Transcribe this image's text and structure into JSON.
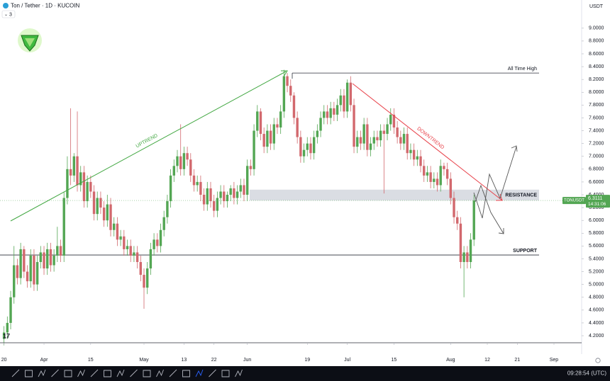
{
  "chart_data": {
    "type": "candlestick",
    "title": "Ton / Tether · 1D · KUCOIN",
    "indicator_badge": "3",
    "currency": "USDT",
    "up_color": "#53a653",
    "down_color": "#d2686d",
    "x": [
      -12,
      -11,
      -10,
      -9,
      -8,
      -7,
      -6,
      -5,
      -4,
      -3,
      -2,
      -1,
      0,
      1,
      2,
      3,
      4,
      5,
      6,
      7,
      8,
      9,
      10,
      11,
      12,
      13,
      14,
      15,
      16,
      17,
      18,
      19,
      20,
      21,
      22,
      23,
      24,
      25,
      26,
      27,
      28,
      29,
      30,
      31,
      32,
      33,
      34,
      35,
      36,
      37,
      38,
      39,
      40,
      41,
      42,
      43,
      44,
      45,
      46,
      47,
      48,
      49,
      50,
      51,
      52,
      53,
      54,
      55,
      56,
      57,
      58,
      59,
      60,
      61,
      62,
      63,
      64,
      65,
      66,
      67,
      68,
      69,
      70,
      71,
      72,
      73,
      74,
      75,
      76,
      77,
      78,
      79,
      80,
      81,
      82,
      83,
      84,
      85,
      86,
      87,
      88,
      89,
      90,
      91,
      92,
      93,
      94,
      95,
      96,
      97,
      98,
      99,
      100,
      101,
      102,
      103,
      104,
      105,
      106,
      107,
      108,
      109,
      110,
      111,
      112,
      113,
      114,
      115,
      116,
      117,
      118,
      119,
      120,
      121,
      122,
      123,
      124,
      125,
      126,
      127,
      128,
      129
    ],
    "open": [
      4.15,
      4.25,
      4.4,
      4.8,
      5.3,
      5.1,
      5.55,
      5.2,
      5.05,
      5.45,
      5.0,
      5.35,
      5.5,
      5.25,
      5.55,
      5.3,
      5.45,
      5.6,
      5.45,
      6.35,
      6.8,
      6.7,
      7.0,
      6.55,
      6.75,
      6.3,
      6.6,
      6.45,
      6.1,
      6.35,
      6.2,
      6.0,
      6.25,
      5.85,
      5.95,
      5.7,
      5.75,
      5.55,
      5.6,
      5.45,
      5.5,
      5.35,
      5.15,
      4.95,
      5.25,
      5.55,
      5.7,
      5.6,
      5.85,
      6.05,
      6.3,
      6.7,
      6.85,
      7.0,
      6.8,
      7.05,
      6.95,
      6.7,
      6.55,
      6.6,
      6.4,
      6.25,
      6.5,
      6.3,
      6.15,
      6.35,
      6.45,
      6.3,
      6.4,
      6.5,
      6.35,
      6.45,
      6.55,
      6.4,
      6.85,
      6.8,
      7.4,
      7.7,
      7.35,
      7.15,
      7.4,
      7.2,
      7.5,
      7.45,
      7.7,
      8.25,
      8.1,
      7.95,
      7.6,
      7.3,
      7.0,
      7.1,
      7.2,
      7.05,
      7.3,
      7.4,
      7.6,
      7.7,
      7.6,
      7.75,
      7.65,
      7.8,
      7.95,
      7.7,
      8.15,
      7.8,
      7.15,
      7.3,
      7.2,
      7.5,
      7.1,
      7.2,
      7.3,
      7.25,
      7.4,
      7.35,
      7.5,
      7.65,
      7.45,
      7.3,
      7.2,
      7.35,
      7.05,
      7.1,
      6.95,
      7.0,
      6.85,
      6.7,
      6.75,
      6.6,
      6.65,
      6.55,
      6.85,
      6.8,
      6.65,
      6.35,
      6.05,
      5.95,
      5.35,
      5.5,
      5.35,
      5.7
    ],
    "high": [
      4.35,
      4.5,
      4.9,
      5.6,
      5.4,
      5.65,
      5.6,
      5.3,
      5.55,
      5.55,
      5.45,
      5.6,
      5.6,
      5.65,
      5.65,
      5.55,
      5.9,
      5.7,
      6.45,
      7.0,
      7.75,
      7.05,
      7.7,
      6.85,
      6.85,
      6.7,
      6.7,
      6.55,
      6.45,
      6.45,
      6.3,
      6.4,
      6.35,
      6.05,
      6.05,
      5.85,
      5.85,
      5.7,
      5.7,
      5.6,
      5.6,
      5.45,
      5.25,
      5.35,
      5.65,
      5.8,
      5.8,
      5.95,
      6.15,
      6.4,
      6.8,
      6.95,
      7.1,
      7.5,
      7.15,
      7.15,
      7.05,
      6.8,
      6.7,
      6.7,
      6.5,
      6.6,
      6.6,
      6.4,
      6.45,
      6.55,
      6.55,
      6.45,
      6.55,
      6.6,
      6.55,
      6.65,
      6.65,
      6.95,
      6.95,
      7.5,
      7.8,
      7.75,
      7.45,
      7.5,
      7.5,
      7.6,
      7.6,
      7.8,
      8.35,
      8.3,
      8.2,
      8.0,
      7.7,
      7.4,
      7.2,
      7.3,
      7.3,
      7.4,
      7.5,
      7.7,
      7.8,
      7.8,
      7.85,
      7.85,
      7.9,
      8.05,
      8.05,
      8.2,
      8.25,
      7.9,
      7.4,
      7.4,
      7.6,
      7.6,
      7.3,
      7.4,
      7.4,
      7.5,
      7.5,
      7.6,
      7.75,
      7.75,
      7.55,
      7.4,
      7.45,
      7.45,
      7.2,
      7.2,
      7.1,
      7.1,
      6.95,
      6.85,
      6.85,
      6.75,
      6.75,
      6.95,
      6.9,
      6.9,
      6.75,
      6.45,
      6.15,
      6.05,
      5.6,
      5.6,
      5.8,
      6.4
    ],
    "low": [
      4.05,
      4.15,
      4.3,
      4.7,
      5.0,
      5.0,
      5.1,
      4.95,
      4.95,
      4.9,
      4.9,
      5.25,
      5.15,
      5.15,
      5.2,
      5.2,
      5.35,
      5.35,
      5.35,
      6.25,
      6.55,
      6.6,
      6.45,
      6.45,
      6.2,
      6.2,
      6.35,
      6.0,
      6.0,
      6.1,
      5.9,
      5.9,
      5.75,
      5.75,
      5.6,
      5.6,
      5.45,
      5.45,
      5.35,
      5.35,
      5.25,
      5.05,
      4.62,
      4.85,
      5.15,
      5.45,
      5.5,
      5.5,
      5.75,
      5.95,
      6.2,
      6.6,
      6.75,
      6.7,
      6.7,
      6.85,
      6.6,
      6.45,
      6.45,
      6.3,
      6.15,
      6.15,
      6.2,
      6.05,
      6.05,
      6.25,
      6.2,
      6.2,
      6.3,
      6.25,
      6.25,
      6.35,
      6.3,
      6.3,
      6.7,
      6.7,
      7.3,
      7.25,
      7.05,
      7.05,
      7.1,
      7.1,
      7.35,
      7.35,
      7.6,
      8.0,
      7.85,
      7.5,
      7.2,
      6.9,
      6.9,
      7.0,
      6.95,
      6.95,
      7.2,
      7.3,
      7.5,
      7.5,
      7.5,
      7.55,
      7.55,
      7.7,
      7.6,
      7.6,
      7.7,
      7.05,
      7.05,
      7.1,
      7.1,
      7.0,
      7.0,
      7.1,
      7.15,
      7.15,
      6.42,
      7.25,
      7.4,
      7.35,
      7.2,
      7.1,
      7.1,
      6.95,
      6.95,
      6.85,
      6.85,
      6.75,
      6.6,
      6.6,
      6.5,
      6.5,
      6.45,
      6.45,
      6.7,
      6.55,
      6.25,
      5.95,
      5.85,
      5.25,
      4.8,
      5.25,
      5.25,
      5.6
    ],
    "close": [
      4.25,
      4.4,
      4.8,
      5.3,
      5.1,
      5.55,
      5.2,
      5.05,
      5.45,
      5.0,
      5.35,
      5.5,
      5.25,
      5.55,
      5.3,
      5.45,
      5.6,
      5.45,
      6.35,
      6.8,
      6.7,
      7.0,
      6.55,
      6.75,
      6.3,
      6.6,
      6.45,
      6.1,
      6.35,
      6.2,
      6.0,
      6.25,
      5.85,
      5.95,
      5.7,
      5.75,
      5.55,
      5.6,
      5.45,
      5.5,
      5.35,
      5.15,
      4.95,
      5.25,
      5.55,
      5.7,
      5.6,
      5.85,
      6.05,
      6.3,
      6.7,
      6.85,
      7.0,
      6.8,
      7.05,
      6.95,
      6.7,
      6.55,
      6.6,
      6.4,
      6.25,
      6.5,
      6.3,
      6.15,
      6.35,
      6.45,
      6.3,
      6.4,
      6.5,
      6.35,
      6.45,
      6.55,
      6.4,
      6.85,
      6.8,
      7.4,
      7.7,
      7.35,
      7.15,
      7.4,
      7.2,
      7.5,
      7.45,
      7.7,
      8.25,
      8.1,
      7.95,
      7.6,
      7.3,
      7.0,
      7.1,
      7.2,
      7.05,
      7.3,
      7.4,
      7.6,
      7.7,
      7.6,
      7.75,
      7.65,
      7.8,
      7.95,
      7.7,
      8.15,
      7.8,
      7.15,
      7.3,
      7.2,
      7.5,
      7.1,
      7.2,
      7.3,
      7.25,
      7.4,
      7.35,
      7.5,
      7.65,
      7.45,
      7.3,
      7.2,
      7.35,
      7.05,
      7.1,
      6.95,
      7.0,
      6.85,
      6.7,
      6.75,
      6.6,
      6.65,
      6.55,
      6.85,
      6.8,
      6.65,
      6.35,
      6.05,
      5.95,
      5.35,
      5.5,
      5.35,
      5.7,
      6.31
    ],
    "xlim": [
      -13.2,
      161.3
    ],
    "xticks": [
      {
        "value": -12,
        "label": "20"
      },
      {
        "value": 0,
        "label": "Apr"
      },
      {
        "value": 14,
        "label": "15"
      },
      {
        "value": 30,
        "label": "May"
      },
      {
        "value": 42,
        "label": "13"
      },
      {
        "value": 51,
        "label": "22"
      },
      {
        "value": 61,
        "label": "Jun"
      },
      {
        "value": 79,
        "label": "19"
      },
      {
        "value": 91,
        "label": "Jul"
      },
      {
        "value": 105,
        "label": "15"
      },
      {
        "value": 122,
        "label": "Aug"
      },
      {
        "value": 133,
        "label": "12"
      },
      {
        "value": 142,
        "label": "21"
      },
      {
        "value": 153,
        "label": "Sep"
      }
    ],
    "ylim": [
      4.09,
      9.44
    ],
    "yticks": [
      {
        "value": 4.2,
        "label": "4.2000"
      },
      {
        "value": 4.4,
        "label": "4.4000"
      },
      {
        "value": 4.6,
        "label": "4.6000"
      },
      {
        "value": 4.8,
        "label": "4.8000"
      },
      {
        "value": 5.0,
        "label": "5.0000"
      },
      {
        "value": 5.2,
        "label": "5.2000"
      },
      {
        "value": 5.4,
        "label": "5.4000"
      },
      {
        "value": 5.6,
        "label": "5.6000"
      },
      {
        "value": 5.8,
        "label": "5.8000"
      },
      {
        "value": 6.0,
        "label": "6.0000"
      },
      {
        "value": 6.2,
        "label": "6.2000"
      },
      {
        "value": 6.4,
        "label": "6.4000"
      },
      {
        "value": 6.6,
        "label": "6.6000"
      },
      {
        "value": 6.8,
        "label": "6.8000"
      },
      {
        "value": 7.0,
        "label": "7.0000"
      },
      {
        "value": 7.2,
        "label": "7.2000"
      },
      {
        "value": 7.4,
        "label": "7.4000"
      },
      {
        "value": 7.6,
        "label": "7.6000"
      },
      {
        "value": 7.8,
        "label": "7.8000"
      },
      {
        "value": 8.0,
        "label": "8.0000"
      },
      {
        "value": 8.2,
        "label": "8.2000"
      },
      {
        "value": 8.4,
        "label": "8.4000"
      },
      {
        "value": 8.6,
        "label": "8.6000"
      },
      {
        "value": 8.8,
        "label": "8.8000"
      },
      {
        "value": 9.0,
        "label": "9.0000"
      }
    ],
    "levels": [
      {
        "label": "All Time High",
        "value": 8.3
      },
      {
        "label": "SUPPORT",
        "value": 5.46
      }
    ],
    "zone": {
      "label": "RESISTANCE",
      "range": [
        6.31,
        6.48
      ]
    },
    "trend_labels": [
      "UPTREND",
      "DOWNTREND"
    ],
    "price_label": {
      "symbol": "TONUSDT",
      "value": 6.3111,
      "countdown": "14:31:06"
    },
    "clock": "09:28:54 (UTC)"
  }
}
